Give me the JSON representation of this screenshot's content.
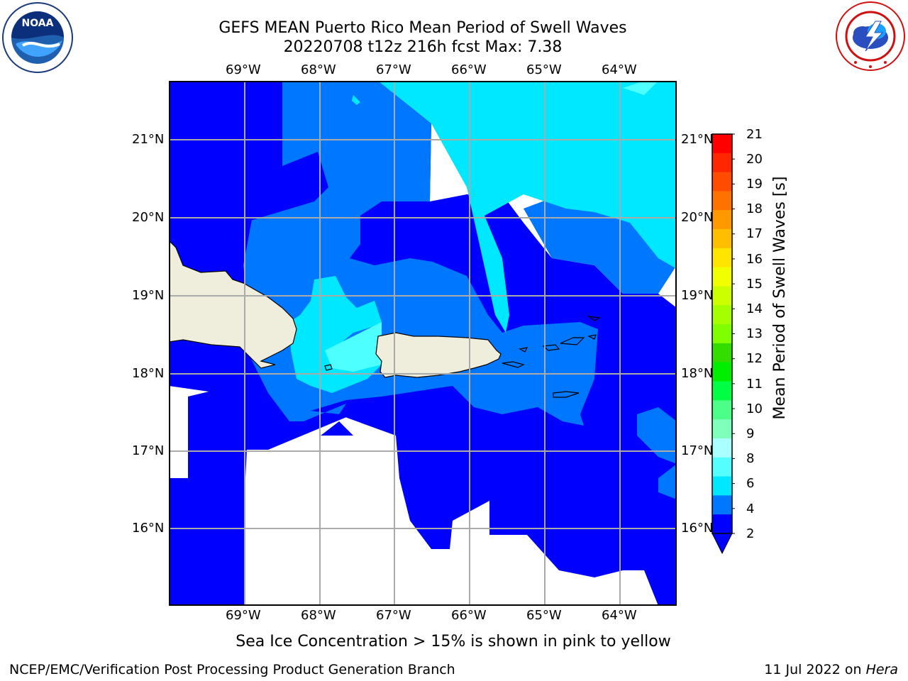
{
  "header": {
    "title_line1": "GEFS MEAN Puerto Rico Mean Period of Swell Waves",
    "title_line2": "20220708 t12z 216h fcst   Max: 7.38"
  },
  "logos": {
    "noaa_text": "NOAA",
    "noaa_ring": "NATIONAL OCEANIC AND ATMOSPHERIC ADMINISTRATION · U.S. DEPARTMENT OF COMMERCE",
    "nws_ring": "NATIONAL WEATHER SERVICE"
  },
  "map": {
    "lon_labels": [
      "69°W",
      "68°W",
      "67°W",
      "66°W",
      "65°W",
      "64°W"
    ],
    "lat_labels": [
      "21°N",
      "20°N",
      "19°N",
      "18°N",
      "17°N",
      "16°N"
    ],
    "colors": {
      "ocean_2_4": "#0000ff",
      "ocean_4_6": "#0077ff",
      "ocean_6_8": "#00e8ff",
      "ocean_8_9": "#4dffff",
      "land": "#efeedd",
      "gridline": "#aaaaaa"
    }
  },
  "colorbar": {
    "label": "Mean Period of Swell Waves [s]",
    "ticks": [
      "21",
      "20",
      "19",
      "18",
      "17",
      "16",
      "15",
      "14",
      "13",
      "12",
      "11",
      "10",
      "9",
      "8",
      "6",
      "4",
      "2"
    ],
    "colors": [
      "#ff0000",
      "#ff2600",
      "#ff4c00",
      "#ff7200",
      "#ff9900",
      "#ffbf00",
      "#ffe500",
      "#f2ff00",
      "#ccff00",
      "#a6ff00",
      "#7fff00",
      "#33dd00",
      "#00ee00",
      "#00ff44",
      "#4cff88",
      "#7fffbb",
      "#aaffff",
      "#55ffff",
      "#00e8ff",
      "#0077ff",
      "#0000ff"
    ]
  },
  "footer": {
    "note": "Sea Ice Concentration > 15% is shown in pink to yellow",
    "left": "NCEP/EMC/Verification Post Processing Product Generation Branch",
    "right_date": "11 Jul 2022 on ",
    "right_machine": "Hera"
  }
}
